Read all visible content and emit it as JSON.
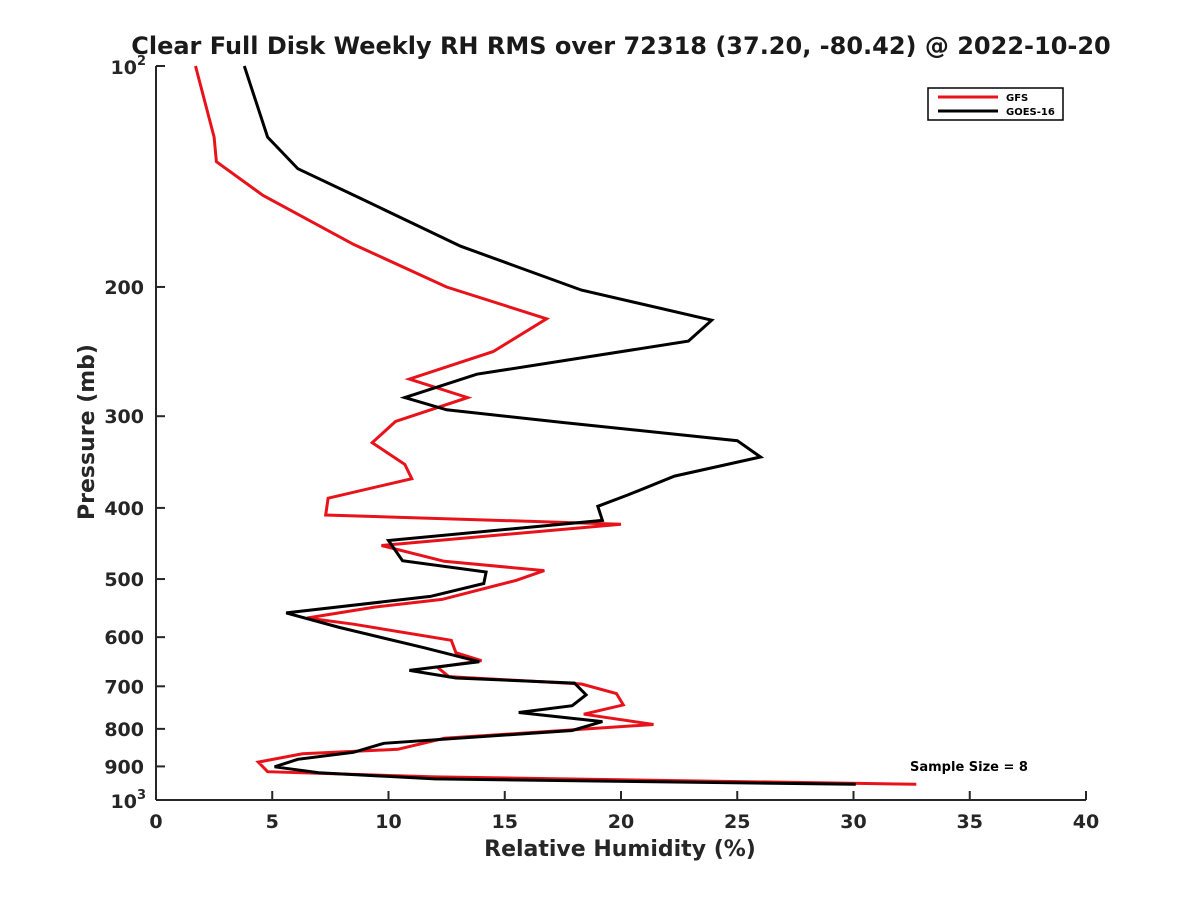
{
  "chart_data": {
    "type": "line",
    "title": "Clear Full Disk Weekly RH RMS over 72318 (37.20, -80.42) @ 2022-10-20",
    "xlabel": "Relative Humidity (%)",
    "ylabel": "Pressure (mb)",
    "xlim": [
      0,
      40
    ],
    "ylim": [
      100,
      1000
    ],
    "y_scale": "log",
    "y_reversed": true,
    "x_ticks": [
      "0",
      "5",
      "10",
      "15",
      "20",
      "25",
      "30",
      "35",
      "40"
    ],
    "y_ticks": [
      {
        "value": 100,
        "label": "10",
        "sup": "2"
      },
      {
        "value": 200,
        "label": "200"
      },
      {
        "value": 300,
        "label": "300"
      },
      {
        "value": 400,
        "label": "400"
      },
      {
        "value": 500,
        "label": "500"
      },
      {
        "value": 600,
        "label": "600"
      },
      {
        "value": 700,
        "label": "700"
      },
      {
        "value": 800,
        "label": "800"
      },
      {
        "value": 900,
        "label": "900"
      },
      {
        "value": 1000,
        "label": "10",
        "sup": "3"
      }
    ],
    "grid": false,
    "legend_position": "top-right",
    "annotation": "Sample Size = 8",
    "series": [
      {
        "name": "GFS",
        "color": "#e8121b",
        "points": [
          [
            1.7,
            100
          ],
          [
            2.5,
            125
          ],
          [
            2.6,
            135
          ],
          [
            4.6,
            150
          ],
          [
            8.5,
            175
          ],
          [
            12.5,
            200
          ],
          [
            16.8,
            221
          ],
          [
            14.5,
            245
          ],
          [
            10.9,
            267
          ],
          [
            13.4,
            283
          ],
          [
            10.3,
            305
          ],
          [
            9.3,
            326
          ],
          [
            10.7,
            349
          ],
          [
            11.0,
            365
          ],
          [
            7.4,
            388
          ],
          [
            7.3,
            409
          ],
          [
            20.0,
            421
          ],
          [
            9.7,
            450
          ],
          [
            12.4,
            473
          ],
          [
            16.7,
            487
          ],
          [
            15.5,
            502
          ],
          [
            12.3,
            533
          ],
          [
            9.4,
            546
          ],
          [
            6.5,
            565
          ],
          [
            8.5,
            576
          ],
          [
            12.7,
            606
          ],
          [
            12.9,
            630
          ],
          [
            14.0,
            646
          ],
          [
            12.1,
            659
          ],
          [
            12.6,
            679
          ],
          [
            18.3,
            695
          ],
          [
            19.8,
            716
          ],
          [
            20.1,
            742
          ],
          [
            18.4,
            764
          ],
          [
            21.4,
            789
          ],
          [
            12.4,
            824
          ],
          [
            10.4,
            853
          ],
          [
            6.3,
            865
          ],
          [
            4.4,
            888
          ],
          [
            4.8,
            915
          ],
          [
            12.0,
            930
          ],
          [
            32.7,
            952
          ]
        ]
      },
      {
        "name": "GOES-16",
        "color": "#000000",
        "points": [
          [
            3.8,
            100
          ],
          [
            4.8,
            125
          ],
          [
            6.1,
            138
          ],
          [
            8.9,
            152
          ],
          [
            13.1,
            176
          ],
          [
            18.3,
            202
          ],
          [
            23.9,
            222
          ],
          [
            22.9,
            237
          ],
          [
            13.8,
            263
          ],
          [
            10.7,
            283
          ],
          [
            12.5,
            294
          ],
          [
            17.5,
            306
          ],
          [
            25.0,
            324
          ],
          [
            26.0,
            341
          ],
          [
            22.3,
            362
          ],
          [
            20.3,
            384
          ],
          [
            19.0,
            398
          ],
          [
            19.2,
            416
          ],
          [
            10.0,
            443
          ],
          [
            10.6,
            472
          ],
          [
            14.2,
            489
          ],
          [
            14.1,
            507
          ],
          [
            11.8,
            528
          ],
          [
            5.6,
            556
          ],
          [
            7.9,
            582
          ],
          [
            11.5,
            620
          ],
          [
            13.9,
            648
          ],
          [
            10.9,
            666
          ],
          [
            12.9,
            682
          ],
          [
            18.0,
            693
          ],
          [
            18.5,
            719
          ],
          [
            17.9,
            744
          ],
          [
            15.6,
            760
          ],
          [
            19.2,
            782
          ],
          [
            17.9,
            804
          ],
          [
            9.8,
            837
          ],
          [
            8.5,
            861
          ],
          [
            6.1,
            880
          ],
          [
            5.1,
            901
          ],
          [
            7.0,
            918
          ],
          [
            12.0,
            936
          ],
          [
            30.1,
            952
          ]
        ]
      }
    ]
  }
}
